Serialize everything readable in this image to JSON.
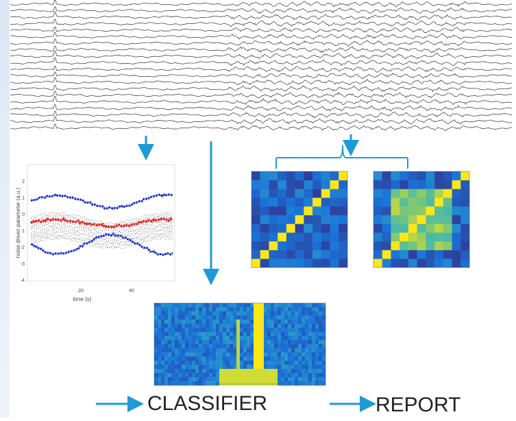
{
  "plot": {
    "y_ticks": [
      "2",
      "1",
      "0",
      "-1",
      "-2",
      "-3",
      "-4"
    ],
    "x_ticks": [
      "20",
      "40"
    ],
    "x_label": "time (s)",
    "y_label": "noise driven parameter (a.u.)"
  },
  "flow": {
    "classifier": "CLASSIFIER",
    "report": "REPORT"
  }
}
